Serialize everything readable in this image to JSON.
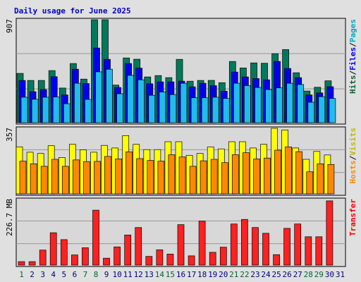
{
  "chart_data": {
    "type": "bar",
    "title": "Daily usage for June 2025",
    "categories": [
      "1",
      "2",
      "3",
      "4",
      "5",
      "6",
      "7",
      "8",
      "9",
      "10",
      "11",
      "12",
      "13",
      "14",
      "15",
      "16",
      "17",
      "18",
      "19",
      "20",
      "21",
      "22",
      "23",
      "24",
      "25",
      "26",
      "27",
      "28",
      "29",
      "30",
      "31"
    ],
    "weekend_color": "#006633",
    "weekday_color": "#000080",
    "weekend_days": [
      "1",
      "7",
      "8",
      "14",
      "15",
      "21",
      "22",
      "28",
      "29"
    ],
    "panels": [
      {
        "name": "hits-files-pages",
        "max_label": "907",
        "ymax": 907,
        "right_label": [
          {
            "text": "Hits",
            "color": "#006633"
          },
          {
            "text": "/",
            "color": "#000000"
          },
          {
            "text": "Files",
            "color": "#0000ff"
          },
          {
            "text": "/",
            "color": "#000000"
          },
          {
            "text": "Pages",
            "color": "#00aacc"
          }
        ],
        "series": [
          {
            "name": "Hits",
            "color": "#007a5a",
            "values": [
              434,
              372,
              372,
              459,
              305,
              521,
              384,
              907,
              907,
              331,
              570,
              559,
              403,
              415,
              397,
              558,
              365,
              372,
              373,
              352,
              539,
              482,
              527,
              524,
              608,
              644,
              440,
              279,
              312,
              369,
              0
            ]
          },
          {
            "name": "Files",
            "color": "#0000ee",
            "values": [
              372,
              273,
              292,
              405,
              245,
              471,
              345,
              658,
              558,
              310,
              521,
              480,
              343,
              360,
              360,
              366,
              316,
              347,
              326,
              278,
              446,
              403,
              389,
              378,
              540,
              478,
              397,
              244,
              262,
              317,
              0
            ]
          },
          {
            "name": "Pages",
            "color": "#22bbee",
            "values": [
              224,
              206,
              224,
              226,
              167,
              347,
              205,
              448,
              471,
              255,
              417,
              378,
              241,
              270,
              248,
              347,
              219,
              219,
              224,
              214,
              347,
              327,
              310,
              292,
              307,
              347,
              336,
              180,
              229,
              214,
              0
            ]
          }
        ]
      },
      {
        "name": "hosts-visits",
        "max_label": "357",
        "ymax": 357,
        "right_label": [
          {
            "text": "Hosts",
            "color": "#ff8800"
          },
          {
            "text": "/",
            "color": "#000000"
          },
          {
            "text": "Visits",
            "color": "#bbbb00"
          }
        ],
        "series": [
          {
            "name": "Visits",
            "color": "#ffff00",
            "values": [
              256,
              227,
              220,
              262,
              198,
              270,
              240,
              227,
              264,
              250,
              317,
              270,
              241,
              241,
              284,
              284,
              210,
              220,
              256,
              245,
              284,
              284,
              250,
              270,
              357,
              348,
              250,
              188,
              231,
              212,
              0
            ]
          },
          {
            "name": "Hosts",
            "color": "#ff8800",
            "values": [
              178,
              164,
              150,
              188,
              150,
              185,
              176,
              177,
              204,
              190,
              229,
              192,
              182,
              178,
              213,
              201,
              150,
              180,
              188,
              170,
              214,
              224,
              190,
              195,
              238,
              256,
              230,
              120,
              164,
              160,
              0
            ]
          }
        ]
      },
      {
        "name": "transfer",
        "max_label": "226.7 MB",
        "ymax": 226.7,
        "right_label": [
          {
            "text": "Transfer",
            "color": "#ff0000"
          }
        ],
        "series": [
          {
            "name": "Transfer",
            "color": "#ff2020",
            "values": [
              12,
              12,
              52,
              112,
              88,
              35,
              60,
              190,
              24,
              63,
              104,
              130,
              30,
              53,
              38,
              140,
              32,
              152,
              44,
              62,
              142,
              158,
              130,
              110,
              36,
              127,
              142,
              98,
              98,
              222,
              0
            ]
          }
        ]
      }
    ]
  }
}
